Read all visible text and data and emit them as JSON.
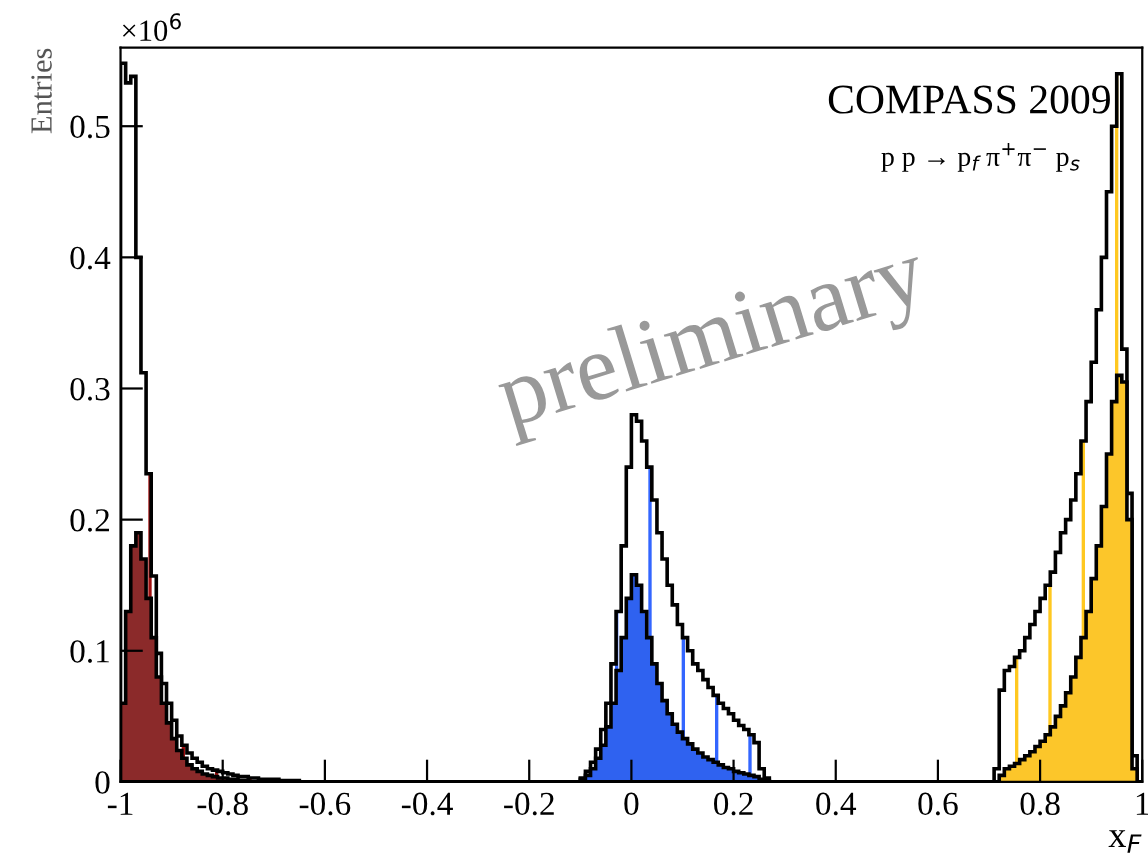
{
  "chart_data": {
    "type": "histogram",
    "xlabel": "x$_{F}$",
    "ylabel": "Entries",
    "xlim": [
      -1,
      1
    ],
    "ylim": [
      0,
      0.56
    ],
    "xticks": [
      -1,
      -0.8,
      -0.6,
      -0.4,
      -0.2,
      0,
      0.2,
      0.4,
      0.6,
      0.8,
      1
    ],
    "yticks": [
      0,
      0.1,
      0.2,
      0.3,
      0.4,
      0.5
    ],
    "grid": false,
    "annotations": [
      "×10$^{6}$",
      "COMPASS 2009",
      "p p → p$_{f}$ π$^{+}$π$^{−}$ p$_{s}$",
      "preliminary"
    ],
    "bins": [
      -1.0,
      -0.99,
      -0.98,
      -0.97,
      -0.96,
      -0.95,
      -0.94,
      -0.93,
      -0.92,
      -0.91,
      -0.9,
      -0.89,
      -0.88,
      -0.87,
      -0.86,
      -0.85,
      -0.84,
      -0.83,
      -0.82,
      -0.81,
      -0.8,
      -0.79,
      -0.78,
      -0.77,
      -0.76,
      -0.75,
      -0.74,
      -0.73,
      -0.72,
      -0.71,
      -0.7,
      -0.69,
      -0.68,
      -0.67,
      -0.66,
      -0.65,
      -0.1,
      -0.09,
      -0.08,
      -0.07,
      -0.06,
      -0.05,
      -0.04,
      -0.03,
      -0.02,
      -0.01,
      0.0,
      0.01,
      0.02,
      0.03,
      0.04,
      0.05,
      0.06,
      0.07,
      0.08,
      0.09,
      0.1,
      0.11,
      0.12,
      0.13,
      0.14,
      0.15,
      0.16,
      0.17,
      0.18,
      0.19,
      0.2,
      0.21,
      0.22,
      0.23,
      0.24,
      0.25,
      0.26,
      0.27,
      0.71,
      0.72,
      0.73,
      0.74,
      0.75,
      0.76,
      0.77,
      0.78,
      0.79,
      0.8,
      0.81,
      0.82,
      0.83,
      0.84,
      0.85,
      0.86,
      0.87,
      0.88,
      0.89,
      0.9,
      0.91,
      0.92,
      0.93,
      0.94,
      0.95,
      0.96,
      0.97,
      0.98,
      0.99,
      1.0
    ],
    "series": [
      {
        "color": "#a01010",
        "values": [
          0.548,
          0.533,
          0.538,
          0.4,
          0.312,
          0.235,
          0.157,
          0.098,
          0.075,
          0.06,
          0.047,
          0.035,
          0.028,
          0.022,
          0.018,
          0.015,
          0.012,
          0.01,
          0.009,
          0.008,
          0.007,
          0.006,
          0.005,
          0.004,
          0.004,
          0.003,
          0.003,
          0.002,
          0.002,
          0.002,
          0.002,
          0.001,
          0.001,
          0.001,
          0.001,
          0,
          0,
          0,
          0,
          0,
          0,
          0,
          0,
          0,
          0,
          0,
          0,
          0,
          0,
          0,
          0,
          0,
          0,
          0,
          0,
          0,
          0,
          0,
          0,
          0,
          0,
          0,
          0,
          0,
          0,
          0,
          0,
          0,
          0,
          0,
          0,
          0,
          0,
          0,
          0,
          0,
          0,
          0,
          0,
          0,
          0,
          0,
          0,
          0,
          0,
          0,
          0,
          0,
          0,
          0,
          0,
          0,
          0,
          0,
          0,
          0,
          0,
          0,
          0,
          0,
          0,
          0,
          0
        ]
      },
      {
        "color": "#8b2a2a",
        "values": [
          0.06,
          0.13,
          0.18,
          0.19,
          0.17,
          0.14,
          0.11,
          0.08,
          0.06,
          0.045,
          0.033,
          0.024,
          0.018,
          0.013,
          0.01,
          0.008,
          0.006,
          0.005,
          0.004,
          0.003,
          0.003,
          0.002,
          0.002,
          0.001,
          0.001,
          0,
          0,
          0,
          0,
          0,
          0,
          0,
          0,
          0,
          0,
          0,
          0,
          0,
          0,
          0,
          0,
          0,
          0,
          0,
          0,
          0,
          0,
          0,
          0,
          0,
          0,
          0,
          0,
          0,
          0,
          0,
          0,
          0,
          0,
          0,
          0,
          0,
          0,
          0,
          0,
          0,
          0,
          0,
          0,
          0,
          0,
          0,
          0,
          0,
          0,
          0,
          0,
          0,
          0,
          0,
          0,
          0,
          0,
          0,
          0,
          0,
          0,
          0,
          0,
          0,
          0,
          0,
          0,
          0,
          0,
          0,
          0,
          0,
          0,
          0,
          0,
          0,
          0
        ]
      },
      {
        "color": "#3366ff",
        "values": [
          0,
          0,
          0,
          0,
          0,
          0,
          0,
          0,
          0,
          0,
          0,
          0,
          0,
          0,
          0,
          0,
          0,
          0,
          0,
          0,
          0,
          0,
          0,
          0,
          0,
          0,
          0,
          0,
          0,
          0,
          0,
          0,
          0,
          0,
          0,
          0,
          0.003,
          0.008,
          0.015,
          0.025,
          0.04,
          0.06,
          0.09,
          0.13,
          0.18,
          0.24,
          0.28,
          0.275,
          0.26,
          0.24,
          0.215,
          0.19,
          0.17,
          0.15,
          0.135,
          0.12,
          0.11,
          0.1,
          0.09,
          0.085,
          0.078,
          0.072,
          0.066,
          0.06,
          0.056,
          0.052,
          0.047,
          0.043,
          0.04,
          0.036,
          0.03,
          0.01,
          0.003,
          0,
          0,
          0,
          0,
          0,
          0,
          0,
          0,
          0,
          0,
          0,
          0,
          0,
          0,
          0,
          0,
          0,
          0,
          0,
          0,
          0,
          0,
          0,
          0,
          0,
          0,
          0,
          0,
          0,
          0
        ]
      },
      {
        "color": "#2f62f0",
        "values": [
          0,
          0,
          0,
          0,
          0,
          0,
          0,
          0,
          0,
          0,
          0,
          0,
          0,
          0,
          0,
          0,
          0,
          0,
          0,
          0,
          0,
          0,
          0,
          0,
          0,
          0,
          0,
          0,
          0,
          0,
          0,
          0,
          0,
          0,
          0,
          0,
          0.002,
          0.005,
          0.01,
          0.018,
          0.028,
          0.042,
          0.06,
          0.085,
          0.11,
          0.14,
          0.158,
          0.15,
          0.13,
          0.11,
          0.09,
          0.075,
          0.062,
          0.052,
          0.044,
          0.038,
          0.033,
          0.029,
          0.025,
          0.022,
          0.019,
          0.017,
          0.015,
          0.013,
          0.011,
          0.01,
          0.008,
          0.007,
          0.006,
          0.005,
          0.004,
          0.002,
          0.001,
          0,
          0,
          0,
          0,
          0,
          0,
          0,
          0,
          0,
          0,
          0,
          0,
          0,
          0,
          0,
          0,
          0,
          0,
          0,
          0,
          0,
          0,
          0,
          0,
          0,
          0,
          0,
          0,
          0,
          0
        ]
      },
      {
        "color": "#ffc820",
        "values": [
          0,
          0,
          0,
          0,
          0,
          0,
          0,
          0,
          0,
          0,
          0,
          0,
          0,
          0,
          0,
          0,
          0,
          0,
          0,
          0,
          0,
          0,
          0,
          0,
          0,
          0,
          0,
          0,
          0,
          0,
          0,
          0,
          0,
          0,
          0,
          0,
          0,
          0,
          0,
          0,
          0,
          0,
          0,
          0,
          0,
          0,
          0,
          0,
          0,
          0,
          0,
          0,
          0,
          0,
          0,
          0,
          0,
          0,
          0,
          0,
          0,
          0,
          0,
          0,
          0,
          0,
          0,
          0,
          0,
          0,
          0,
          0,
          0,
          0,
          0.01,
          0.07,
          0.085,
          0.088,
          0.095,
          0.1,
          0.11,
          0.12,
          0.13,
          0.14,
          0.15,
          0.16,
          0.175,
          0.19,
          0.2,
          0.215,
          0.235,
          0.26,
          0.29,
          0.32,
          0.36,
          0.4,
          0.45,
          0.5,
          0.54,
          0.33,
          0.22,
          0.02,
          0
        ]
      },
      {
        "color": "#fcc62a",
        "values": [
          0,
          0,
          0,
          0,
          0,
          0,
          0,
          0,
          0,
          0,
          0,
          0,
          0,
          0,
          0,
          0,
          0,
          0,
          0,
          0,
          0,
          0,
          0,
          0,
          0,
          0,
          0,
          0,
          0,
          0,
          0,
          0,
          0,
          0,
          0,
          0,
          0,
          0,
          0,
          0,
          0,
          0,
          0,
          0,
          0,
          0,
          0,
          0,
          0,
          0,
          0,
          0,
          0,
          0,
          0,
          0,
          0,
          0,
          0,
          0,
          0,
          0,
          0,
          0,
          0,
          0,
          0,
          0,
          0,
          0,
          0,
          0,
          0,
          0,
          0.0,
          0.005,
          0.01,
          0.012,
          0.014,
          0.017,
          0.02,
          0.023,
          0.027,
          0.031,
          0.036,
          0.042,
          0.05,
          0.058,
          0.068,
          0.08,
          0.095,
          0.11,
          0.13,
          0.155,
          0.18,
          0.21,
          0.25,
          0.29,
          0.31,
          0.305,
          0.2,
          0.01,
          0
        ]
      }
    ]
  }
}
